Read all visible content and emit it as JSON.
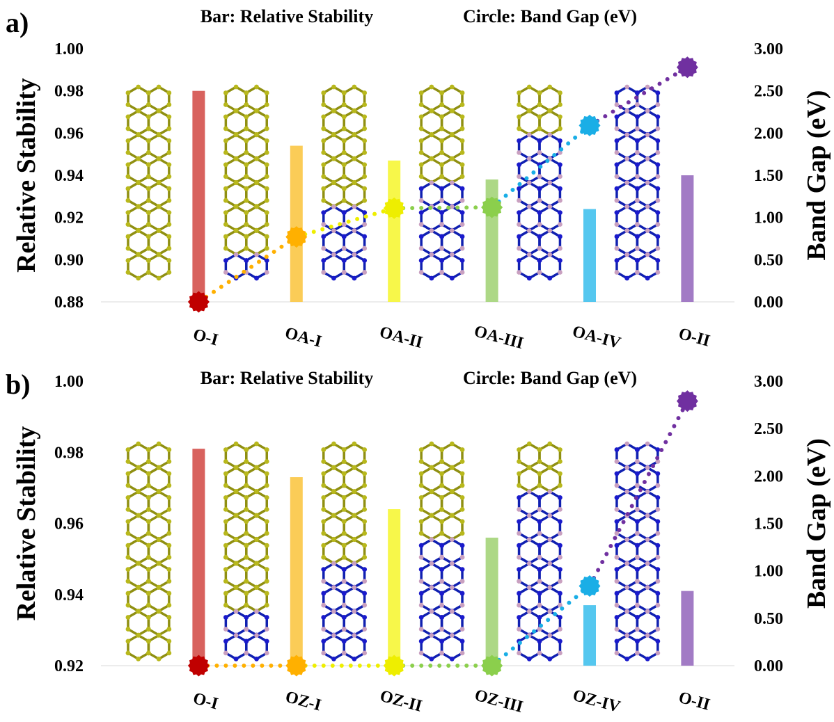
{
  "chart_data": [
    {
      "type": "bar",
      "panel": "a)",
      "bar_legend": "Bar: Relative Stability",
      "circle_legend": "Circle: Band Gap (eV)",
      "y_label": "Relative Stability",
      "y2_label": "Band Gap (eV)",
      "categories": [
        "O-I",
        "OA-I",
        "OA-II",
        "OA-III",
        "OA-IV",
        "O-II"
      ],
      "series": [
        {
          "type": "bar",
          "values": [
            0.98,
            0.954,
            0.947,
            0.938,
            0.924,
            0.94
          ],
          "colors": [
            "#d65a55",
            "#fbc94e",
            "#f7f740",
            "#a9d680",
            "#4cc4ee",
            "#9d74c2"
          ]
        },
        {
          "type": "scatter",
          "axis": "y2",
          "values": [
            0.0,
            0.77,
            1.11,
            1.12,
            2.09,
            2.78
          ],
          "colors": [
            "#c00000",
            "#ffb000",
            "#eeee00",
            "#8bcf4c",
            "#1aaee6",
            "#7030a0"
          ]
        }
      ],
      "ylim": [
        0.88,
        1.0
      ],
      "yticks": [
        0.88,
        {
          "value": 0.9,
          "label": "0.90"
        },
        0.92,
        0.94,
        0.96,
        0.98,
        {
          "value": 1.0,
          "label": "1.00"
        }
      ],
      "y2lim": [
        0,
        3
      ],
      "y2ticks": [
        {
          "value": 0,
          "label": "0.00"
        },
        {
          "value": 0.5,
          "label": "0.50"
        },
        {
          "value": 1,
          "label": "1.00"
        },
        {
          "value": 1.5,
          "label": "1.50"
        },
        {
          "value": 2,
          "label": "2.00"
        },
        {
          "value": 2.5,
          "label": "2.50"
        },
        {
          "value": 3,
          "label": "3.00"
        }
      ]
    },
    {
      "type": "bar",
      "panel": "b)",
      "bar_legend": "Bar: Relative Stability",
      "circle_legend": "Circle: Band Gap (eV)",
      "y_label": "Relative Stability",
      "y2_label": "Band Gap (eV)",
      "categories": [
        "O-I",
        "OZ-I",
        "OZ-II",
        "OZ-III",
        "OZ-IV",
        "O-II"
      ],
      "series": [
        {
          "type": "bar",
          "values": [
            0.981,
            0.973,
            0.964,
            0.956,
            0.937,
            0.941
          ],
          "colors": [
            "#d65a55",
            "#fbc94e",
            "#f7f740",
            "#a9d680",
            "#4cc4ee",
            "#9d74c2"
          ]
        },
        {
          "type": "scatter",
          "axis": "y2",
          "values": [
            0.0,
            0.0,
            0.0,
            0.0,
            0.84,
            2.79
          ],
          "colors": [
            "#c00000",
            "#ffb000",
            "#eeee00",
            "#8bcf4c",
            "#1aaee6",
            "#7030a0"
          ]
        }
      ],
      "ylim": [
        0.92,
        1.0
      ],
      "yticks": [
        0.92,
        0.94,
        0.96,
        0.98,
        {
          "value": 1.0,
          "label": "1.00"
        }
      ],
      "y2lim": [
        0,
        3
      ],
      "y2ticks": [
        {
          "value": 0,
          "label": "0.00"
        },
        {
          "value": 0.5,
          "label": "0.50"
        },
        {
          "value": 1,
          "label": "1.00"
        },
        {
          "value": 1.5,
          "label": "1.50"
        },
        {
          "value": 2,
          "label": "2.00"
        },
        {
          "value": 2.5,
          "label": "2.50"
        },
        {
          "value": 3,
          "label": "3.00"
        }
      ]
    }
  ]
}
